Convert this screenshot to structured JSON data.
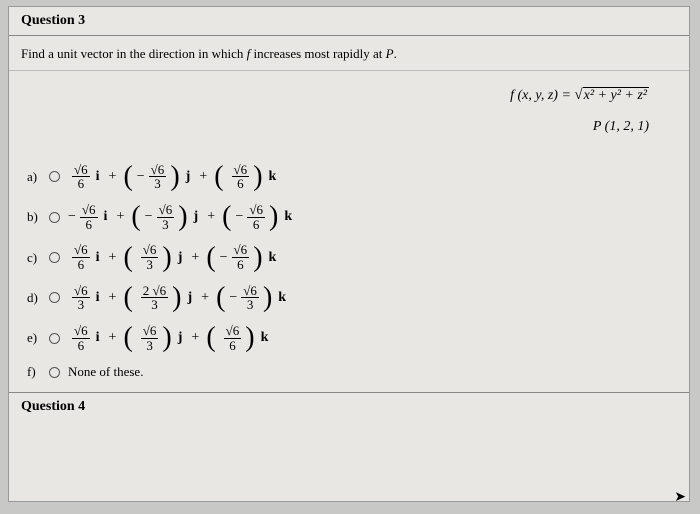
{
  "question_header": "Question 3",
  "prompt_text": "Find a unit vector in the direction in which f increases most rapidly at P.",
  "function_def": "f (x, y, z) = ",
  "radicand_text": "x² + y² + z²",
  "point_text": "P (1, 2, 1)",
  "options": {
    "a": {
      "label": "a)",
      "t1s": "",
      "t1n": "√6",
      "t1d": "6",
      "t2s": "−",
      "t2n": "√6",
      "t2d": "3",
      "t3s": "",
      "t3n": "√6",
      "t3d": "6"
    },
    "b": {
      "label": "b)",
      "t1s": "−",
      "t1n": "√6",
      "t1d": "6",
      "t2s": "−",
      "t2n": "√6",
      "t2d": "3",
      "t3s": "−",
      "t3n": "√6",
      "t3d": "6"
    },
    "c": {
      "label": "c)",
      "t1s": "",
      "t1n": "√6",
      "t1d": "6",
      "t2s": "",
      "t2n": "√6",
      "t2d": "3",
      "t3s": "−",
      "t3n": "√6",
      "t3d": "6"
    },
    "d": {
      "label": "d)",
      "t1s": "",
      "t1n": "√6",
      "t1d": "3",
      "t2s": "",
      "t2n": "2 √6",
      "t2d": "3",
      "t3s": "−",
      "t3n": "√6",
      "t3d": "3"
    },
    "e": {
      "label": "e)",
      "t1s": "",
      "t1n": "√6",
      "t1d": "6",
      "t2s": "",
      "t2n": "√6",
      "t2d": "3",
      "t3s": "",
      "t3n": "√6",
      "t3d": "6"
    },
    "f": {
      "label": "f)",
      "text": "None of these."
    }
  },
  "ijk": {
    "i": "i",
    "j": "j",
    "k": "k",
    "plus": "+"
  },
  "footer": "Question 4",
  "colors": {
    "page_bg": "#c8c9c7",
    "paper_bg": "#e8e7e3",
    "border": "#888888",
    "text": "#000000"
  }
}
